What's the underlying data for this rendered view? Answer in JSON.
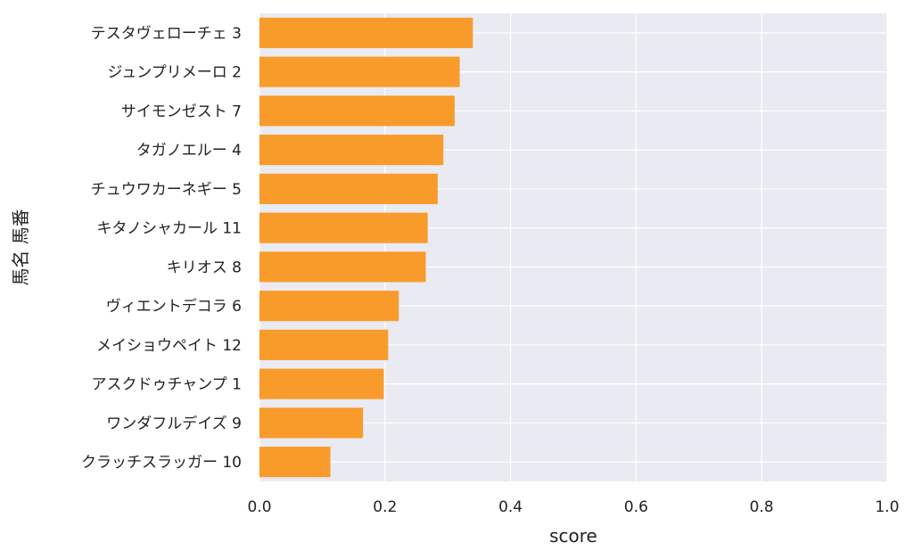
{
  "chart_data": {
    "type": "bar",
    "orientation": "horizontal",
    "categories": [
      "テスタヴェローチェ 3",
      "ジュンプリメーロ 2",
      "サイモンゼスト 7",
      "タガノエルー 4",
      "チュウワカーネギー 5",
      "キタノシャカール 11",
      "キリオス 8",
      "ヴィエントデコラ 6",
      "メイショウペイト 12",
      "アスクドゥチャンプ 1",
      "ワンダフルデイズ 9",
      "クラッチスラッガー 10"
    ],
    "values": [
      0.34,
      0.319,
      0.311,
      0.293,
      0.284,
      0.268,
      0.265,
      0.222,
      0.205,
      0.198,
      0.165,
      0.113
    ],
    "xlabel": "score",
    "ylabel": "馬名 馬番",
    "xlim": [
      0,
      1.0
    ],
    "xticks": [
      "0.0",
      "0.2",
      "0.4",
      "0.6",
      "0.8",
      "1.0"
    ],
    "grid": true,
    "colors": {
      "bar": "#f99b2a",
      "plot_bg": "#eaeaf2",
      "grid": "#ffffff"
    }
  }
}
